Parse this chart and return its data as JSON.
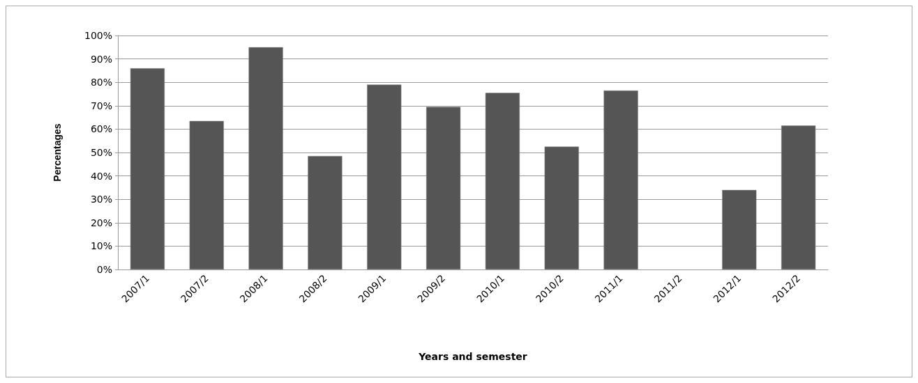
{
  "chart_data": {
    "type": "bar",
    "xlabel": "Years and semester",
    "ylabel": "Percentages",
    "categories": [
      "2007/1",
      "2007/2",
      "2008/1",
      "2008/2",
      "2009/1",
      "2009/2",
      "2010/1",
      "2010/2",
      "2011/1",
      "2011/2",
      "2012/1",
      "2012/2"
    ],
    "values": [
      86,
      63.5,
      95,
      48.5,
      79,
      69.5,
      75.5,
      52.5,
      76.5,
      null,
      34,
      61.5
    ],
    "color": "#555555",
    "ylim": [
      0,
      100
    ],
    "yticks": [
      {
        "value": 0,
        "label": "0%"
      },
      {
        "value": 10,
        "label": "10%"
      },
      {
        "value": 20,
        "label": "20%"
      },
      {
        "value": 30,
        "label": "30%"
      },
      {
        "value": 40,
        "label": "40%"
      },
      {
        "value": 50,
        "label": "50%"
      },
      {
        "value": 60,
        "label": "60%"
      },
      {
        "value": 70,
        "label": "70%"
      },
      {
        "value": 80,
        "label": "80%"
      },
      {
        "value": 90,
        "label": "90%"
      },
      {
        "value": 100,
        "label": "100%"
      }
    ],
    "grid": "y"
  }
}
